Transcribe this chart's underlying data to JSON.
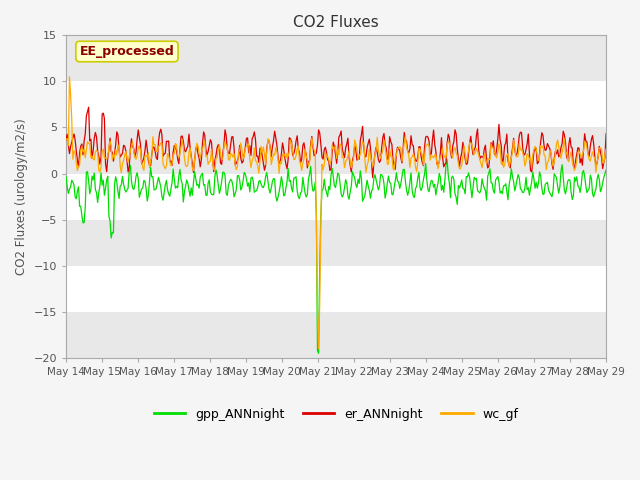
{
  "title": "CO2 Fluxes",
  "ylabel": "CO2 Fluxes (urology/m2/s)",
  "ylim": [
    -20,
    15
  ],
  "yticks": [
    -20,
    -15,
    -10,
    -5,
    0,
    5,
    10,
    15
  ],
  "xlabel": "",
  "fig_bg_color": "#f5f5f5",
  "plot_bg_color": "#ffffff",
  "band_color": "#e8e8e8",
  "annotation_text": "EE_processed",
  "annotation_color": "#8b0000",
  "annotation_bg": "#ffffcc",
  "annotation_border": "#cccc00",
  "line_colors": {
    "gpp_ANNnight": "#00dd00",
    "er_ANNnight": "#dd0000",
    "wc_gf": "#ffaa00"
  },
  "legend_labels": [
    "gpp_ANNnight",
    "er_ANNnight",
    "wc_gf"
  ],
  "n_points": 480,
  "x_start": 14,
  "x_end": 29,
  "x_ticks": [
    14,
    15,
    16,
    17,
    18,
    19,
    20,
    21,
    22,
    23,
    24,
    25,
    26,
    27,
    28,
    29
  ],
  "x_tick_labels": [
    "May 14",
    "May 15",
    "May 16",
    "May 17",
    "May 18",
    "May 19",
    "May 20",
    "May 21",
    "May 22",
    "May 23",
    "May 24",
    "May 25",
    "May 26",
    "May 27",
    "May 28",
    "May 29"
  ],
  "band_ranges": [
    [
      -20,
      -15
    ],
    [
      -10,
      -5
    ],
    [
      0,
      5
    ],
    [
      10,
      15
    ]
  ]
}
